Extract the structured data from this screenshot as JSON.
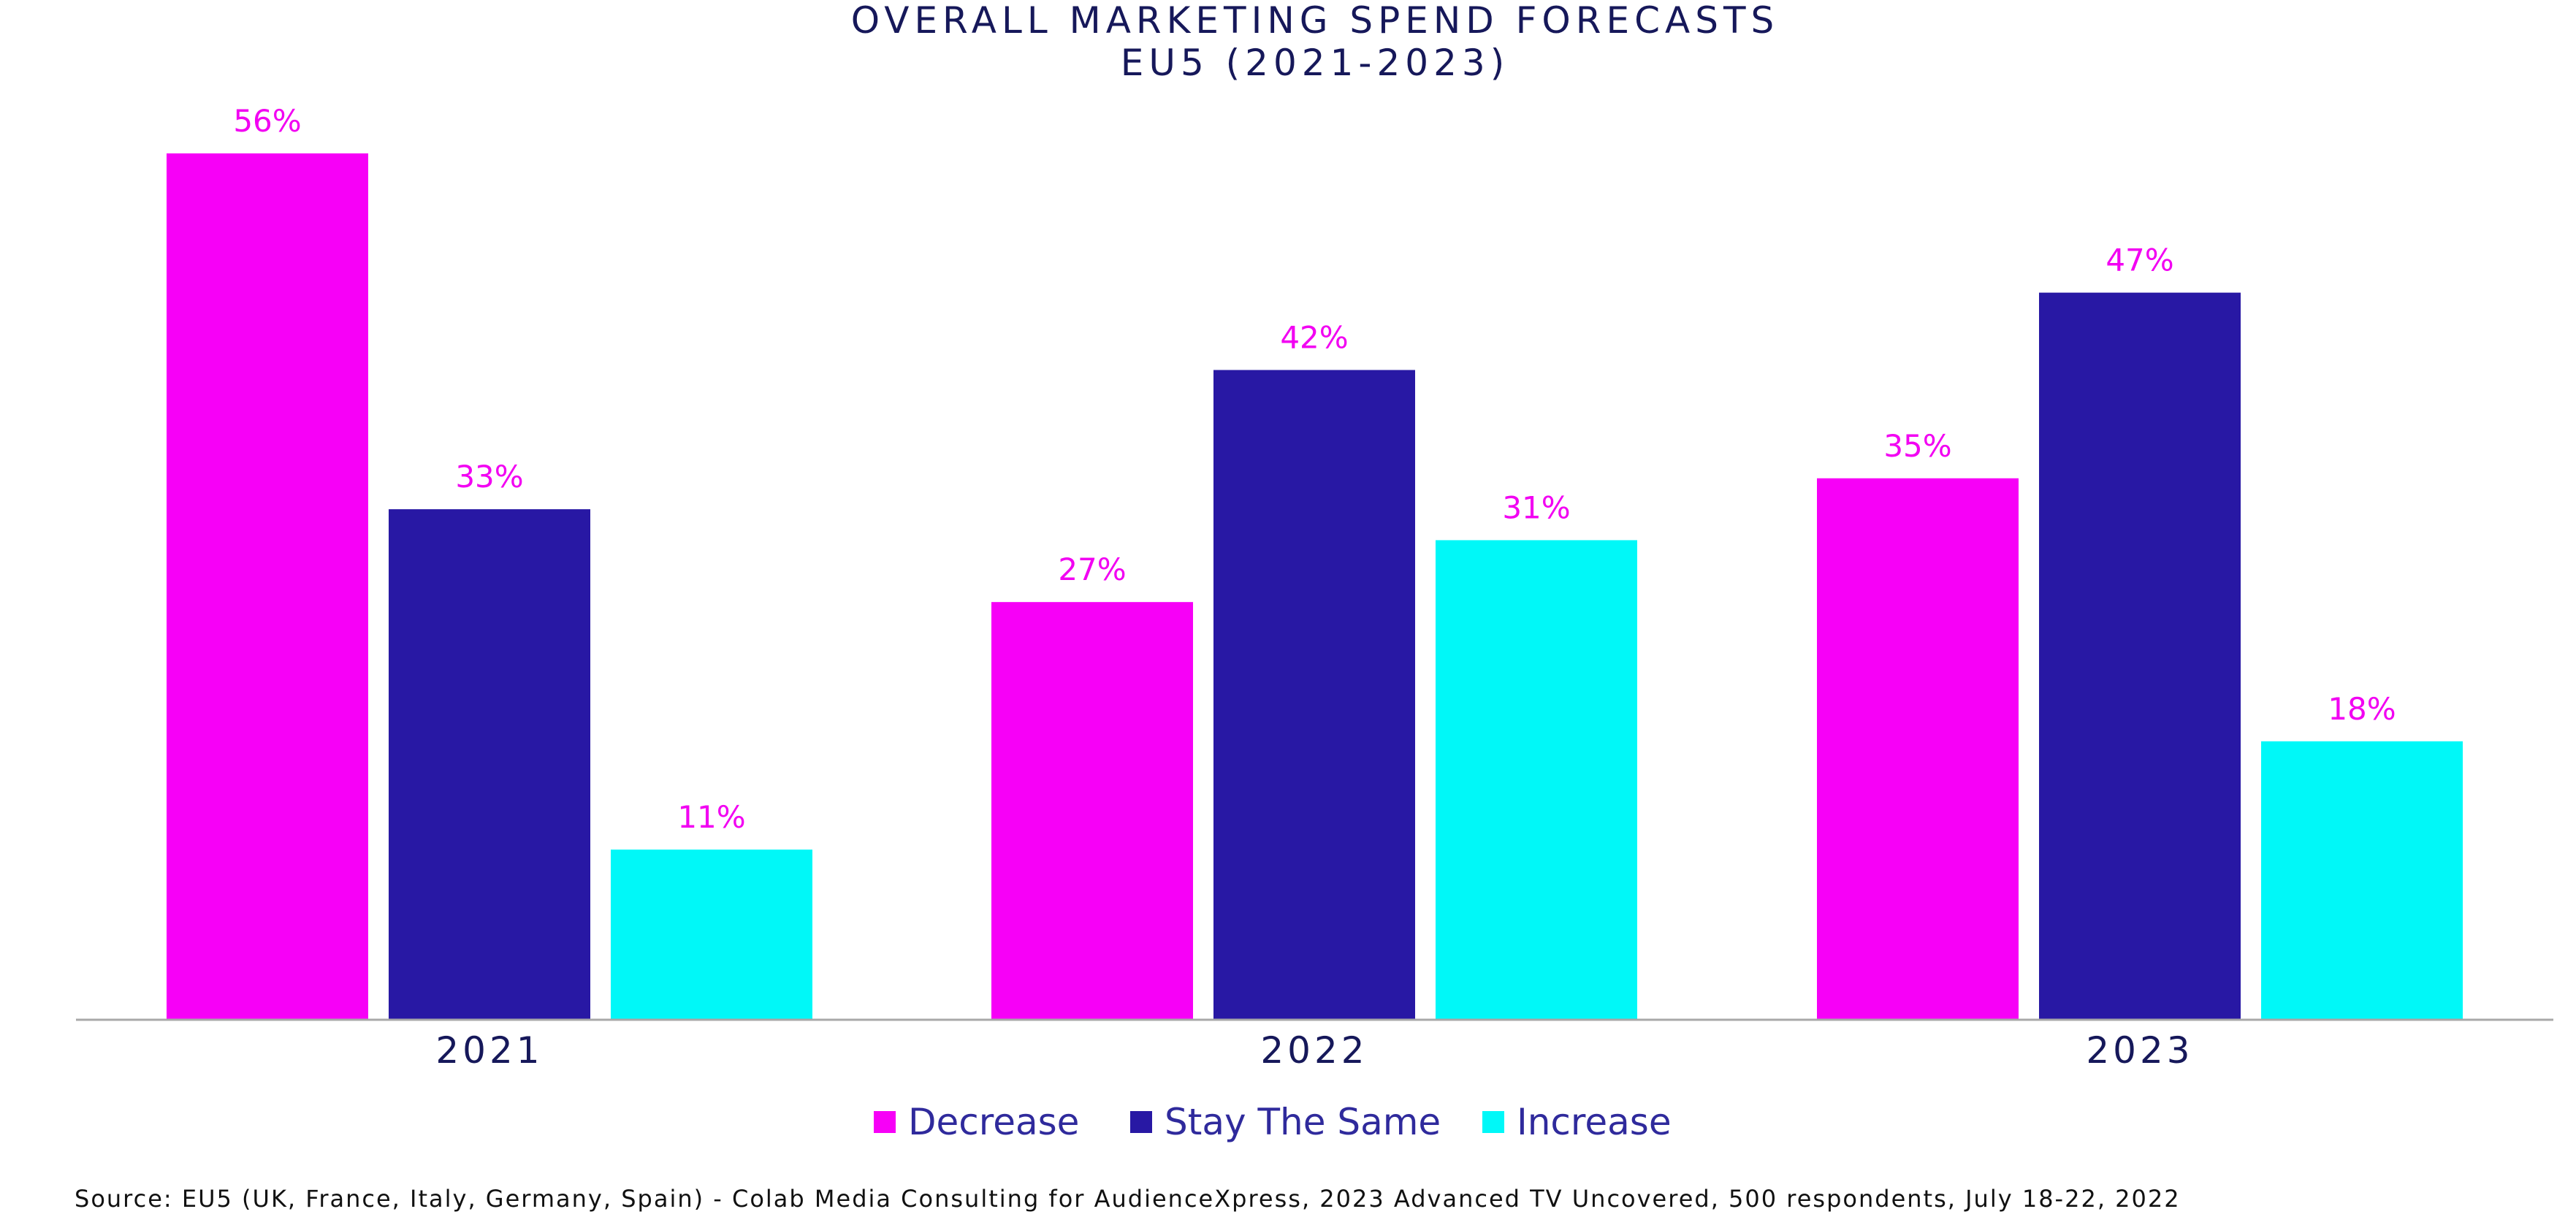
{
  "chart_data": {
    "type": "bar",
    "title": [
      "OVERALL MARKETING SPEND FORECASTS",
      "EU5 (2021-2023)"
    ],
    "categories": [
      "2021",
      "2022",
      "2023"
    ],
    "series": [
      {
        "name": "Decrease",
        "color": "#f700f7",
        "values": [
          56,
          27,
          35
        ],
        "labels": [
          "56%",
          "27%",
          "35%"
        ]
      },
      {
        "name": "Stay The Same",
        "color": "#2818a4",
        "values": [
          33,
          42,
          47
        ],
        "labels": [
          "33%",
          "42%",
          "47%"
        ]
      },
      {
        "name": "Increase",
        "color": "#00f8f8",
        "values": [
          11,
          31,
          18
        ],
        "labels": [
          "11%",
          "31%",
          "18%"
        ]
      }
    ],
    "ylim": [
      0,
      56
    ],
    "xlabel": "",
    "ylabel": "",
    "grid": false,
    "legend": "bottom-center",
    "source": "Source: EU5 (UK, France, Italy, Germany, Spain) -  Colab Media Consulting for AudienceXpress, 2023 Advanced TV Uncovered, 500 respondents, July 18-22, 2022"
  },
  "colors": {
    "title": "#16185a",
    "label": "#f200f2",
    "axis": "#a8a8a8",
    "legend_text": "#2f2a9c"
  }
}
